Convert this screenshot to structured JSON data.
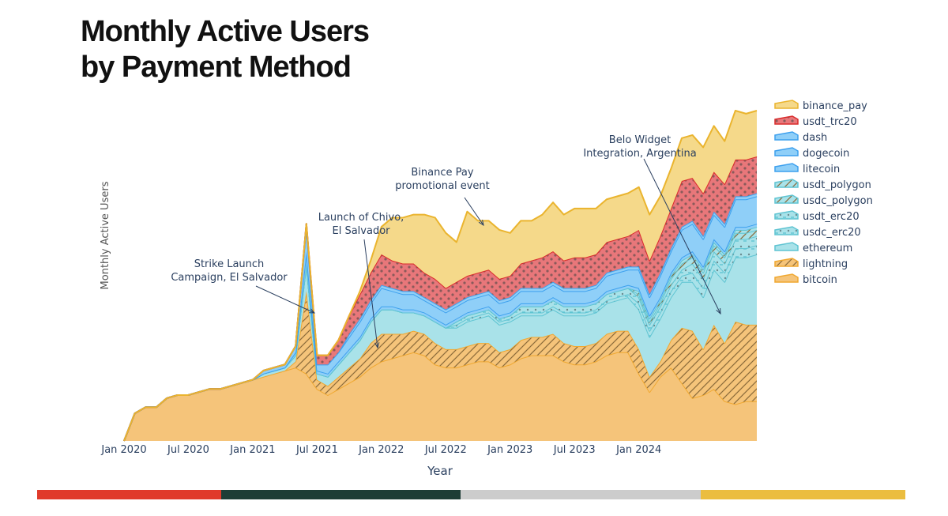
{
  "title": {
    "line1": "Monthly Active Users",
    "line2": "by Payment Method"
  },
  "bottom_strip": {
    "colors": [
      "#e03a2a",
      "#1e3d36",
      "#cccccc",
      "#ebbd3f"
    ]
  },
  "chart_data": {
    "type": "area",
    "stacked": true,
    "xlabel": "Year",
    "ylabel": "Monthly Active Users",
    "x_ticks": [
      "Jan 2020",
      "Jul 2020",
      "Jan 2021",
      "Jul 2021",
      "Jan 2022",
      "Jul 2022",
      "Jan 2023",
      "Jul 2023",
      "Jan 2024"
    ],
    "x_range": [
      "2020-01",
      "2024-12"
    ],
    "y_axis_tick_labels_shown": false,
    "grid": false,
    "legend_position": "right",
    "value_units": "relative (y-axis unlabeled; top of stack at peak = 100)",
    "x": [
      "2020-01",
      "2020-02",
      "2020-03",
      "2020-04",
      "2020-05",
      "2020-06",
      "2020-07",
      "2020-08",
      "2020-09",
      "2020-10",
      "2020-11",
      "2020-12",
      "2021-01",
      "2021-02",
      "2021-03",
      "2021-04",
      "2021-05",
      "2021-06",
      "2021-07",
      "2021-08",
      "2021-09",
      "2021-10",
      "2021-11",
      "2021-12",
      "2022-01",
      "2022-02",
      "2022-03",
      "2022-04",
      "2022-05",
      "2022-06",
      "2022-07",
      "2022-08",
      "2022-09",
      "2022-10",
      "2022-11",
      "2022-12",
      "2023-01",
      "2023-02",
      "2023-03",
      "2023-04",
      "2023-05",
      "2023-06",
      "2023-07",
      "2023-08",
      "2023-09",
      "2023-10",
      "2023-11",
      "2023-12",
      "2024-01",
      "2024-02",
      "2024-03",
      "2024-04",
      "2024-05",
      "2024-06",
      "2024-07",
      "2024-08",
      "2024-09",
      "2024-10",
      "2024-11",
      "2024-12"
    ],
    "series": [
      {
        "name": "bitcoin",
        "color": "#f5c47a",
        "edge": "#f0a830",
        "pattern": "none",
        "values": [
          0,
          9,
          11,
          11,
          14,
          15,
          15,
          16,
          17,
          17,
          18,
          19,
          20,
          21,
          22,
          23,
          24,
          22,
          17,
          15,
          17,
          19,
          21,
          24,
          26,
          27,
          28,
          29,
          28,
          25,
          24,
          24,
          25,
          26,
          26,
          24,
          25,
          27,
          28,
          28,
          28,
          26,
          25,
          25,
          26,
          28,
          29,
          29,
          22,
          16,
          21,
          24,
          19,
          14,
          15,
          17,
          13,
          12,
          13,
          13
        ]
      },
      {
        "name": "lightning",
        "color": "#f5c47a",
        "edge": "#f0a830",
        "pattern": "hatch",
        "values": [
          0,
          0,
          0,
          0,
          0,
          0,
          0,
          0,
          0,
          0,
          0,
          0,
          0,
          0,
          0,
          0,
          2,
          27,
          3,
          3,
          4,
          5,
          6,
          8,
          9,
          8,
          7,
          7,
          7,
          7,
          6,
          6,
          6,
          6,
          6,
          5,
          5,
          6,
          6,
          6,
          7,
          6,
          6,
          6,
          6,
          7,
          7,
          7,
          8,
          5,
          5,
          9,
          18,
          22,
          15,
          21,
          19,
          27,
          25,
          25
        ]
      },
      {
        "name": "ethereum",
        "color": "#a9e2e9",
        "edge": "#5fc4d2",
        "pattern": "none",
        "values": [
          0,
          0,
          0,
          0,
          0,
          0,
          0,
          0,
          0,
          0,
          0,
          0,
          0,
          1,
          1,
          1,
          2,
          9,
          2,
          3,
          4,
          5,
          6,
          7,
          8,
          8,
          7,
          6,
          6,
          7,
          7,
          7,
          8,
          8,
          9,
          9,
          9,
          8,
          7,
          7,
          8,
          9,
          10,
          10,
          10,
          10,
          10,
          11,
          13,
          13,
          14,
          14,
          15,
          16,
          17,
          18,
          20,
          21,
          22,
          23
        ]
      },
      {
        "name": "usdc_erc20",
        "color": "#a9e2e9",
        "edge": "#5fc4d2",
        "pattern": "dashes",
        "values": [
          0,
          0,
          0,
          0,
          0,
          0,
          0,
          0,
          0,
          0,
          0,
          0,
          0,
          0,
          0,
          0,
          0,
          0,
          0,
          0,
          0,
          0,
          0,
          0,
          0,
          0,
          0,
          0,
          0,
          0,
          0,
          1,
          1,
          1,
          1,
          1,
          1,
          1,
          1,
          1,
          1,
          1,
          1,
          1,
          1,
          1,
          1,
          1,
          2,
          2,
          2,
          2,
          2,
          3,
          3,
          3,
          3,
          3,
          3,
          3
        ]
      },
      {
        "name": "usdt_erc20",
        "color": "#a9e2e9",
        "edge": "#5fc4d2",
        "pattern": "dashes",
        "values": [
          0,
          0,
          0,
          0,
          0,
          0,
          0,
          0,
          0,
          0,
          0,
          0,
          0,
          0,
          0,
          0,
          0,
          0,
          0,
          0,
          0,
          0,
          0,
          0,
          0,
          0,
          0,
          0,
          0,
          0,
          0,
          1,
          1,
          1,
          1,
          1,
          1,
          2,
          2,
          2,
          2,
          2,
          2,
          2,
          2,
          2,
          2,
          2,
          2,
          2,
          2,
          2,
          2,
          3,
          3,
          3,
          3,
          3,
          3,
          3
        ]
      },
      {
        "name": "usdc_polygon",
        "color": "#a9e2e9",
        "edge": "#5fc4d2",
        "pattern": "hatch",
        "values": [
          0,
          0,
          0,
          0,
          0,
          0,
          0,
          0,
          0,
          0,
          0,
          0,
          0,
          0,
          0,
          0,
          0,
          0,
          0,
          0,
          0,
          0,
          0,
          0,
          0,
          0,
          0,
          0,
          0,
          0,
          0,
          0,
          0,
          0,
          0,
          0,
          0,
          0,
          0,
          0,
          0,
          0,
          0,
          0,
          0,
          0,
          0,
          0,
          1,
          1,
          1,
          2,
          2,
          2,
          2,
          2,
          2,
          2,
          2,
          2
        ]
      },
      {
        "name": "usdt_polygon",
        "color": "#a9e2e9",
        "edge": "#5fc4d2",
        "pattern": "hatch",
        "values": [
          0,
          0,
          0,
          0,
          0,
          0,
          0,
          0,
          0,
          0,
          0,
          0,
          0,
          0,
          0,
          0,
          0,
          0,
          0,
          0,
          0,
          0,
          0,
          0,
          0,
          0,
          0,
          0,
          0,
          0,
          0,
          0,
          0,
          0,
          0,
          0,
          0,
          0,
          0,
          0,
          0,
          0,
          0,
          0,
          0,
          0,
          0,
          0,
          1,
          1,
          1,
          1,
          1,
          1,
          1,
          1,
          1,
          1,
          1,
          1
        ]
      },
      {
        "name": "litecoin",
        "color": "#8fcff8",
        "edge": "#3da0ee",
        "pattern": "none",
        "values": [
          0,
          0,
          0,
          0,
          0,
          0,
          0,
          0,
          0,
          0,
          0,
          0,
          0,
          0,
          0,
          0,
          1,
          4,
          1,
          1,
          1,
          1,
          1,
          1,
          1,
          1,
          1,
          1,
          1,
          1,
          1,
          1,
          1,
          1,
          1,
          1,
          1,
          1,
          1,
          1,
          1,
          1,
          1,
          1,
          1,
          1,
          1,
          1,
          1,
          1,
          1,
          1,
          1,
          1,
          1,
          1,
          1,
          1,
          1,
          1
        ]
      },
      {
        "name": "dogecoin",
        "color": "#8fcff8",
        "edge": "#3da0ee",
        "pattern": "none",
        "values": [
          0,
          0,
          0,
          0,
          0,
          0,
          0,
          0,
          0,
          0,
          0,
          0,
          0,
          1,
          1,
          1,
          2,
          8,
          2,
          3,
          3,
          4,
          5,
          5,
          6,
          5,
          5,
          5,
          4,
          4,
          4,
          4,
          4,
          4,
          4,
          4,
          4,
          4,
          4,
          4,
          4,
          4,
          4,
          4,
          4,
          5,
          5,
          5,
          6,
          6,
          7,
          7,
          9,
          9,
          9,
          8,
          8,
          9,
          9,
          9
        ]
      },
      {
        "name": "dash",
        "color": "#8fcff8",
        "edge": "#3da0ee",
        "pattern": "none",
        "values": [
          0,
          0,
          0,
          0,
          0,
          0,
          0,
          0,
          0,
          0,
          0,
          0,
          0,
          0,
          0,
          0,
          0,
          1,
          0,
          0,
          0,
          1,
          1,
          1,
          1,
          1,
          1,
          1,
          1,
          1,
          1,
          1,
          1,
          1,
          1,
          1,
          1,
          1,
          1,
          1,
          1,
          1,
          1,
          1,
          1,
          1,
          1,
          1,
          1,
          1,
          1,
          1,
          1,
          1,
          1,
          1,
          1,
          1,
          1,
          1
        ]
      },
      {
        "name": "usdt_trc20",
        "color": "#e8777a",
        "edge": "#d92b2b",
        "pattern": "dots",
        "values": [
          0,
          0,
          0,
          0,
          0,
          0,
          0,
          0,
          0,
          0,
          0,
          0,
          0,
          0,
          0,
          0,
          0,
          0,
          3,
          3,
          4,
          6,
          8,
          9,
          10,
          9,
          9,
          9,
          8,
          8,
          7,
          7,
          7,
          7,
          7,
          7,
          7,
          8,
          9,
          10,
          10,
          9,
          10,
          10,
          10,
          10,
          10,
          10,
          12,
          11,
          12,
          13,
          15,
          14,
          14,
          13,
          13,
          12,
          12,
          12
        ]
      },
      {
        "name": "binance_pay",
        "color": "#f5d98a",
        "edge": "#eab42e",
        "pattern": "none",
        "values": [
          0,
          0,
          0,
          0,
          0,
          0,
          0,
          0,
          0,
          0,
          0,
          0,
          0,
          0,
          0,
          0,
          0,
          0,
          0,
          0,
          0,
          0,
          1,
          4,
          9,
          14,
          15,
          16,
          19,
          20,
          18,
          13,
          21,
          17,
          16,
          16,
          14,
          14,
          13,
          14,
          16,
          15,
          16,
          16,
          15,
          14,
          14,
          14,
          14,
          15,
          13,
          13,
          14,
          14,
          15,
          15,
          14,
          16,
          15,
          15
        ]
      }
    ],
    "annotations": [
      {
        "text": [
          "Strike Launch",
          "Campaign, El Salvador"
        ],
        "x": "2021-05"
      },
      {
        "text": [
          "Launch of Chivo,",
          "El Salvador"
        ],
        "x": "2021-11"
      },
      {
        "text": [
          "Binance Pay",
          "promotional event"
        ],
        "x": "2022-07"
      },
      {
        "text": [
          "Belo Widget",
          "Integration, Argentina"
        ],
        "x": "2024-06"
      }
    ]
  }
}
